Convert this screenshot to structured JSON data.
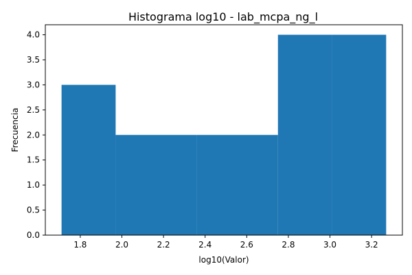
{
  "chart_data": {
    "type": "bar",
    "title": "Histograma log10 - lab_mcpa_ng_l",
    "xlabel": "log10(Valor)",
    "ylabel": "Frecuencia",
    "bins": [
      {
        "x0": 1.71,
        "x1": 1.97,
        "count": 3
      },
      {
        "x0": 1.97,
        "x1": 2.36,
        "count": 2
      },
      {
        "x0": 2.36,
        "x1": 2.75,
        "count": 2
      },
      {
        "x0": 2.75,
        "x1": 3.01,
        "count": 4
      },
      {
        "x0": 3.01,
        "x1": 3.27,
        "count": 4
      }
    ],
    "xlim": [
      1.632,
      3.348
    ],
    "ylim": [
      0,
      4.2
    ],
    "xticks": [
      1.8,
      2.0,
      2.2,
      2.4,
      2.6,
      2.8,
      3.0,
      3.2
    ],
    "xtick_labels": [
      "1.8",
      "2.0",
      "2.2",
      "2.4",
      "2.6",
      "2.8",
      "3.0",
      "3.2"
    ],
    "yticks": [
      0,
      0.5,
      1.0,
      1.5,
      2.0,
      2.5,
      3.0,
      3.5,
      4.0
    ],
    "ytick_labels": [
      "0.0",
      "0.5",
      "1.0",
      "1.5",
      "2.0",
      "2.5",
      "3.0",
      "3.5",
      "4.0"
    ],
    "bar_color": "#1f77b4",
    "grid": false
  }
}
